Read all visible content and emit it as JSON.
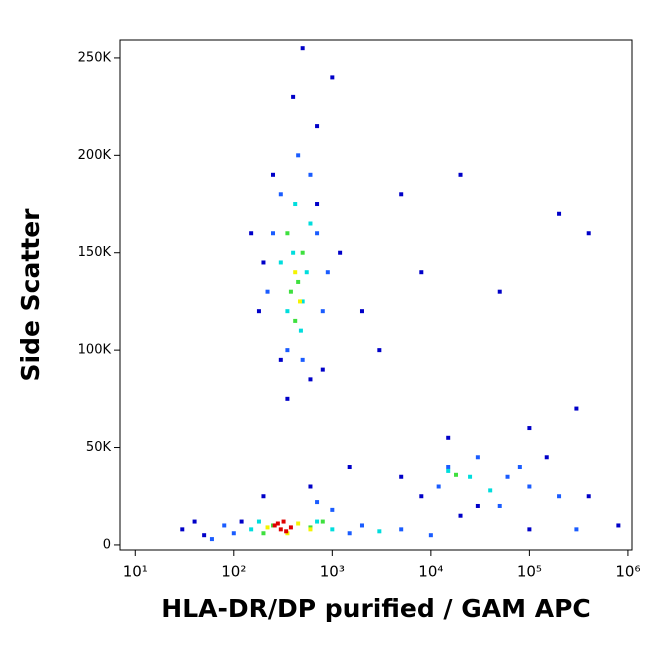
{
  "chart_data": {
    "type": "scatter",
    "xlabel": "HLA-DR/DP purified / GAM APC",
    "ylabel": "Side Scatter",
    "xscale": "log",
    "xlim": [
      7,
      1100000
    ],
    "ylim": [
      -2600,
      259200
    ],
    "xticks": [
      {
        "value": 10,
        "label": "10¹"
      },
      {
        "value": 100,
        "label": "10²"
      },
      {
        "value": 1000,
        "label": "10³"
      },
      {
        "value": 10000,
        "label": "10⁴"
      },
      {
        "value": 100000,
        "label": "10⁵"
      },
      {
        "value": 1000000,
        "label": "10⁶"
      }
    ],
    "yticks": [
      0,
      {
        "value": 50000,
        "label": "50K"
      },
      {
        "value": 100000,
        "label": "100K"
      },
      {
        "value": 150000,
        "label": "150K"
      },
      {
        "value": 200000,
        "label": "200K"
      },
      {
        "value": 250000,
        "label": "250K"
      }
    ],
    "series": [
      {
        "color": "#0000c8",
        "x": [
          250,
          400,
          700,
          150,
          180,
          300,
          800,
          600,
          350,
          1200,
          2000,
          3000,
          5000,
          8000,
          20000,
          50000,
          200000,
          400000,
          100000,
          300000,
          15000,
          5000,
          8000,
          400000,
          800000,
          30,
          50,
          40,
          20000,
          100000,
          1500,
          600,
          200,
          120,
          30000,
          150000,
          1000,
          500,
          700,
          200
        ],
        "y": [
          190000,
          230000,
          215000,
          160000,
          120000,
          95000,
          90000,
          85000,
          75000,
          150000,
          120000,
          100000,
          180000,
          140000,
          190000,
          130000,
          170000,
          160000,
          60000,
          70000,
          55000,
          35000,
          25000,
          25000,
          10000,
          8000,
          5000,
          12000,
          15000,
          8000,
          40000,
          30000,
          25000,
          12000,
          20000,
          45000,
          240000,
          255000,
          175000,
          145000
        ]
      },
      {
        "color": "#1a5cff",
        "x": [
          300,
          250,
          450,
          700,
          800,
          220,
          350,
          500,
          900,
          600,
          15000,
          30000,
          60000,
          100000,
          200000,
          12000,
          50000,
          80000,
          2000,
          5000,
          100,
          80,
          1000,
          10000,
          300000,
          60,
          1500,
          700
        ],
        "y": [
          180000,
          160000,
          200000,
          160000,
          120000,
          130000,
          100000,
          95000,
          140000,
          190000,
          40000,
          45000,
          35000,
          30000,
          25000,
          30000,
          20000,
          40000,
          10000,
          8000,
          6000,
          10000,
          18000,
          5000,
          8000,
          3000,
          6000,
          22000
        ]
      },
      {
        "color": "#00dddd",
        "x": [
          400,
          550,
          350,
          480,
          300,
          600,
          420,
          15000,
          25000,
          700,
          150,
          180,
          1000,
          3000,
          40000,
          500
        ],
        "y": [
          150000,
          140000,
          120000,
          110000,
          145000,
          165000,
          175000,
          38000,
          35000,
          12000,
          8000,
          12000,
          8000,
          7000,
          28000,
          125000
        ]
      },
      {
        "color": "#3ee03e",
        "x": [
          450,
          380,
          500,
          420,
          350,
          250,
          600,
          200,
          800,
          18000
        ],
        "y": [
          135000,
          130000,
          150000,
          115000,
          160000,
          10000,
          9000,
          6000,
          12000,
          36000
        ]
      },
      {
        "color": "#f4f400",
        "x": [
          420,
          470,
          220,
          450,
          350,
          600
        ],
        "y": [
          140000,
          125000,
          9000,
          11000,
          6000,
          8000
        ]
      },
      {
        "color": "#e00000",
        "x": [
          260,
          300,
          320,
          380,
          280,
          340
        ],
        "y": [
          10000,
          8000,
          12000,
          9000,
          11000,
          7000
        ]
      }
    ]
  }
}
